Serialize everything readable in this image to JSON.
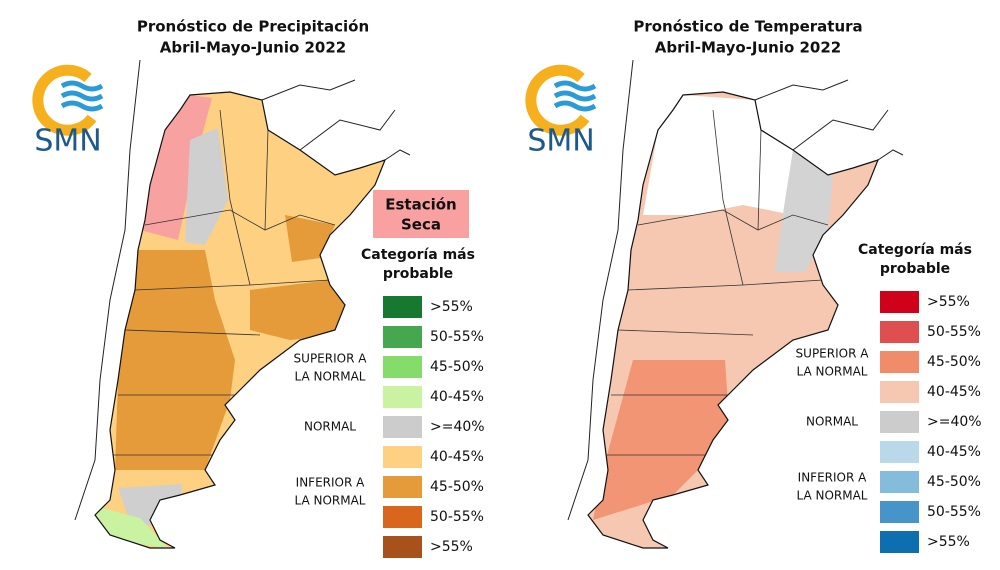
{
  "panels": [
    {
      "title": "Pronóstico de Precipitación",
      "subtitle": "Abril-Mayo-Junio 2022",
      "logo": "SMN",
      "badge": [
        "Estación",
        "Seca"
      ],
      "legend_title": [
        "Categoría más",
        "probable"
      ],
      "groups": [
        [
          "SUPERIOR A",
          "LA NORMAL"
        ],
        [
          "NORMAL"
        ],
        [
          "INFERIOR A",
          "LA NORMAL"
        ]
      ],
      "legend": [
        {
          "label": ">55%",
          "color": "#17782f"
        },
        {
          "label": "50-55%",
          "color": "#45a84e"
        },
        {
          "label": "45-50%",
          "color": "#86dc6a"
        },
        {
          "label": "40-45%",
          "color": "#c9f3a0"
        },
        {
          "label": ">=40%",
          "color": "#cccccc"
        },
        {
          "label": "40-45%",
          "color": "#fdd082"
        },
        {
          "label": "45-50%",
          "color": "#e59b3a"
        },
        {
          "label": "50-55%",
          "color": "#d8661c"
        },
        {
          "label": ">55%",
          "color": "#a6521a"
        }
      ]
    },
    {
      "title": "Pronóstico de Temperatura",
      "subtitle": "Abril-Mayo-Junio 2022",
      "logo": "SMN",
      "legend_title": [
        "Categoría más",
        "probable"
      ],
      "groups": [
        [
          "SUPERIOR A",
          "LA NORMAL"
        ],
        [
          "NORMAL"
        ],
        [
          "INFERIOR A",
          "LA NORMAL"
        ]
      ],
      "legend": [
        {
          "label": ">55%",
          "color": "#d0021b"
        },
        {
          "label": "50-55%",
          "color": "#e04f4f"
        },
        {
          "label": "45-50%",
          "color": "#f08c6a"
        },
        {
          "label": "40-45%",
          "color": "#f6c7b1"
        },
        {
          "label": ">=40%",
          "color": "#cccccc"
        },
        {
          "label": "40-45%",
          "color": "#b9d9ea"
        },
        {
          "label": "45-50%",
          "color": "#86bcdb"
        },
        {
          "label": "50-55%",
          "color": "#4795c8"
        },
        {
          "label": ">55%",
          "color": "#0d6eb0"
        }
      ]
    }
  ]
}
